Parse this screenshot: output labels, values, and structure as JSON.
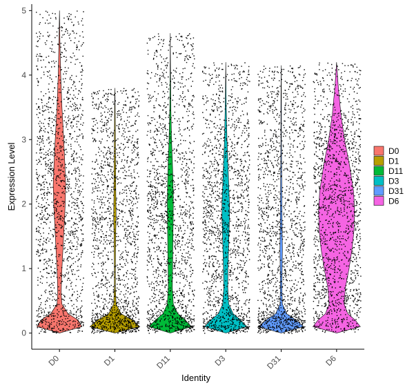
{
  "chart_data": {
    "type": "violin",
    "xlabel": "Identity",
    "ylabel": "Expression Level",
    "ylim": [
      -0.25,
      5.1
    ],
    "yticks": [
      0,
      1,
      2,
      3,
      4,
      5
    ],
    "grid": false,
    "legend_position": "right",
    "categories": [
      "D0",
      "D1",
      "D11",
      "D3",
      "D31",
      "D6"
    ],
    "series": [
      {
        "name": "D0",
        "color": "#F8766D",
        "max": 5.0,
        "profile": [
          [
            0,
            0.0
          ],
          [
            0.1,
            0.9
          ],
          [
            0.2,
            0.75
          ],
          [
            0.3,
            0.35
          ],
          [
            0.45,
            0.1
          ],
          [
            0.6,
            0.07
          ],
          [
            0.8,
            0.08
          ],
          [
            1.0,
            0.1
          ],
          [
            1.3,
            0.14
          ],
          [
            1.6,
            0.18
          ],
          [
            2.0,
            0.23
          ],
          [
            2.3,
            0.25
          ],
          [
            2.6,
            0.22
          ],
          [
            3.0,
            0.17
          ],
          [
            3.5,
            0.1
          ],
          [
            4.0,
            0.05
          ],
          [
            4.5,
            0.02
          ],
          [
            5.0,
            0.0
          ]
        ]
      },
      {
        "name": "D1",
        "color": "#B79F00",
        "max": 3.8,
        "profile": [
          [
            0,
            0.0
          ],
          [
            0.1,
            1.0
          ],
          [
            0.2,
            0.7
          ],
          [
            0.3,
            0.25
          ],
          [
            0.45,
            0.05
          ],
          [
            0.7,
            0.02
          ],
          [
            1.0,
            0.02
          ],
          [
            1.5,
            0.03
          ],
          [
            1.8,
            0.05
          ],
          [
            2.1,
            0.04
          ],
          [
            2.5,
            0.03
          ],
          [
            3.0,
            0.02
          ],
          [
            3.5,
            0.01
          ],
          [
            3.8,
            0.0
          ]
        ]
      },
      {
        "name": "D11",
        "color": "#00BA38",
        "max": 4.65,
        "profile": [
          [
            0,
            0.0
          ],
          [
            0.1,
            0.85
          ],
          [
            0.2,
            0.6
          ],
          [
            0.3,
            0.3
          ],
          [
            0.45,
            0.12
          ],
          [
            0.7,
            0.08
          ],
          [
            1.0,
            0.09
          ],
          [
            1.3,
            0.1
          ],
          [
            1.6,
            0.11
          ],
          [
            2.0,
            0.12
          ],
          [
            2.3,
            0.11
          ],
          [
            2.7,
            0.08
          ],
          [
            3.0,
            0.05
          ],
          [
            3.5,
            0.02
          ],
          [
            4.0,
            0.01
          ],
          [
            4.65,
            0.0
          ]
        ]
      },
      {
        "name": "D3",
        "color": "#00BFC4",
        "max": 4.2,
        "profile": [
          [
            0,
            0.0
          ],
          [
            0.1,
            0.85
          ],
          [
            0.2,
            0.6
          ],
          [
            0.3,
            0.3
          ],
          [
            0.45,
            0.12
          ],
          [
            0.7,
            0.08
          ],
          [
            1.0,
            0.09
          ],
          [
            1.4,
            0.12
          ],
          [
            1.8,
            0.15
          ],
          [
            2.0,
            0.15
          ],
          [
            2.3,
            0.12
          ],
          [
            2.7,
            0.08
          ],
          [
            3.0,
            0.05
          ],
          [
            3.5,
            0.02
          ],
          [
            4.2,
            0.0
          ]
        ]
      },
      {
        "name": "D31",
        "color": "#619CFF",
        "max": 4.15,
        "profile": [
          [
            0,
            0.0
          ],
          [
            0.1,
            0.9
          ],
          [
            0.2,
            0.6
          ],
          [
            0.3,
            0.22
          ],
          [
            0.45,
            0.05
          ],
          [
            0.7,
            0.03
          ],
          [
            1.0,
            0.04
          ],
          [
            1.3,
            0.05
          ],
          [
            1.6,
            0.04
          ],
          [
            2.0,
            0.03
          ],
          [
            2.5,
            0.02
          ],
          [
            3.0,
            0.01
          ],
          [
            3.5,
            0.01
          ],
          [
            4.15,
            0.0
          ]
        ]
      },
      {
        "name": "D6",
        "color": "#F564E3",
        "max": 4.2,
        "profile": [
          [
            0,
            0.0
          ],
          [
            0.1,
            0.95
          ],
          [
            0.2,
            0.75
          ],
          [
            0.3,
            0.45
          ],
          [
            0.45,
            0.3
          ],
          [
            0.7,
            0.35
          ],
          [
            1.0,
            0.5
          ],
          [
            1.3,
            0.62
          ],
          [
            1.6,
            0.7
          ],
          [
            1.9,
            0.72
          ],
          [
            2.2,
            0.68
          ],
          [
            2.6,
            0.52
          ],
          [
            3.0,
            0.32
          ],
          [
            3.4,
            0.17
          ],
          [
            3.8,
            0.07
          ],
          [
            4.2,
            0.0
          ]
        ]
      }
    ]
  }
}
